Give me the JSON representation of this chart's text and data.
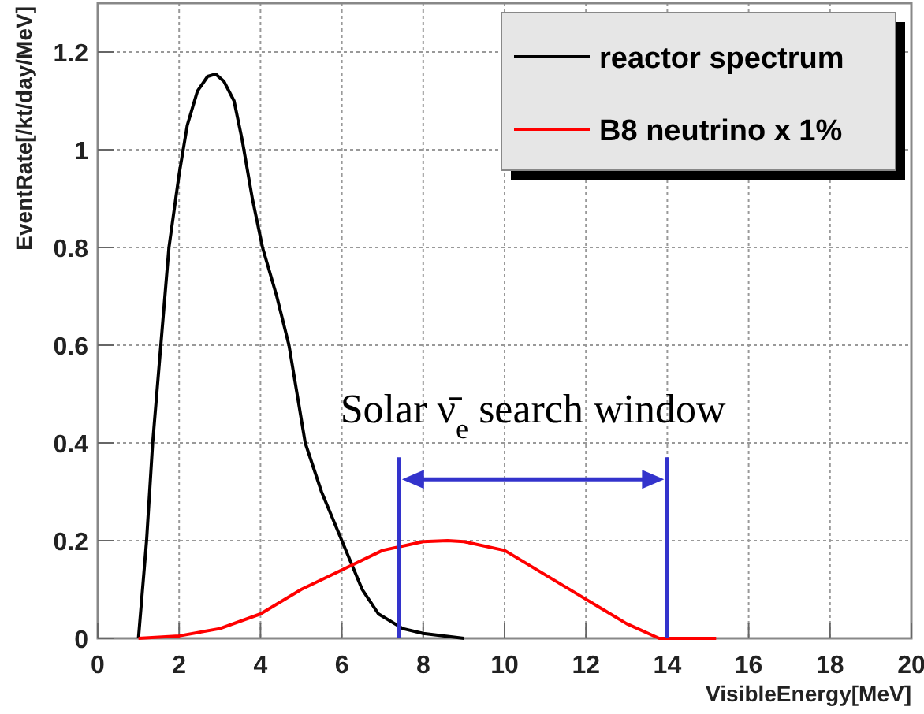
{
  "chart_data": {
    "type": "line",
    "xlabel": "VisibleEnergy[MeV]",
    "ylabel": "EventRate[/kt/day/MeV]",
    "xlim": [
      0,
      20
    ],
    "xticks": [
      0,
      2,
      4,
      6,
      8,
      10,
      12,
      14,
      16,
      18,
      20
    ],
    "ylim": [
      0,
      1.3
    ],
    "yticks": [
      0,
      0.2,
      0.4,
      0.6,
      0.8,
      1,
      1.2
    ],
    "grid": true,
    "legend": "top right",
    "series": [
      {
        "name": "reactor spectrum",
        "color": "#000000",
        "x": [
          1,
          1.2,
          1.35,
          1.55,
          1.75,
          2,
          2.2,
          2.45,
          2.7,
          2.9,
          3.1,
          3.35,
          3.55,
          3.8,
          4.05,
          4.4,
          4.7,
          5.1,
          5.5,
          6,
          6.5,
          6.9,
          7.5,
          8,
          9
        ],
        "values": [
          0,
          0.2,
          0.4,
          0.6,
          0.8,
          0.95,
          1.05,
          1.12,
          1.15,
          1.155,
          1.14,
          1.1,
          1.02,
          0.9,
          0.8,
          0.7,
          0.6,
          0.4,
          0.3,
          0.2,
          0.1,
          0.05,
          0.02,
          0.01,
          0
        ]
      },
      {
        "name": "B8 neutrino x 1%",
        "color": "#ff0000",
        "x": [
          1,
          2,
          3,
          4,
          5,
          6,
          7,
          8,
          8.6,
          9,
          10,
          11,
          12,
          13,
          13.8,
          15.2
        ],
        "values": [
          0,
          0.005,
          0.02,
          0.05,
          0.1,
          0.14,
          0.18,
          0.198,
          0.2,
          0.198,
          0.18,
          0.13,
          0.08,
          0.03,
          0,
          0
        ]
      }
    ],
    "ref_lines": [
      {
        "axis": "x",
        "value": 7.4,
        "color": "#3333cc"
      },
      {
        "axis": "x",
        "value": 14,
        "color": "#3333cc"
      }
    ],
    "annotations": [
      "Solar ν̄$_{e}$ search window"
    ]
  }
}
